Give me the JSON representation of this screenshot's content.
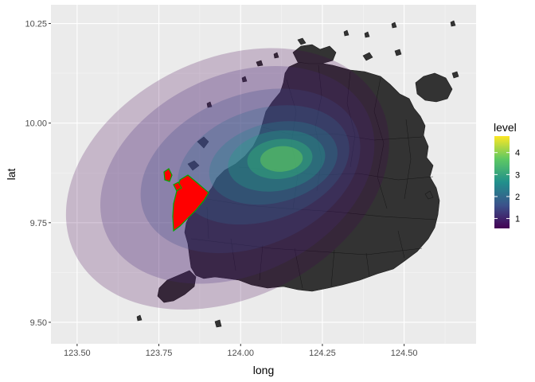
{
  "chart_data": {
    "type": "map-density",
    "xlabel": "long",
    "ylabel": "lat",
    "xlim": [
      123.42,
      124.72
    ],
    "ylim": [
      9.446,
      10.297
    ],
    "x_ticks": [
      {
        "value": 123.5,
        "label": "123.50"
      },
      {
        "value": 123.75,
        "label": "123.75"
      },
      {
        "value": 124.0,
        "label": "124.00"
      },
      {
        "value": 124.25,
        "label": "124.25"
      },
      {
        "value": 124.5,
        "label": "124.50"
      }
    ],
    "y_ticks": [
      {
        "value": 9.5,
        "label": "9.50"
      },
      {
        "value": 9.75,
        "label": "9.75"
      },
      {
        "value": 10.0,
        "label": "10.00"
      },
      {
        "value": 10.25,
        "label": "10.25"
      }
    ],
    "grid": true,
    "legend": {
      "title": "level",
      "position": "right",
      "ticks": [
        {
          "value": 1,
          "label": "1"
        },
        {
          "value": 2,
          "label": "2"
        },
        {
          "value": 3,
          "label": "3"
        },
        {
          "value": 4,
          "label": "4"
        }
      ],
      "range": [
        0.55,
        4.75
      ],
      "colors": [
        "#440154",
        "#3b528b",
        "#21908c",
        "#5dc863",
        "#fde725"
      ]
    },
    "density": {
      "center": [
        124.12,
        9.91
      ],
      "contours": [
        {
          "level": 0.5,
          "color": "#440154",
          "opacity": 0.22,
          "cx": 123.96,
          "cy": 9.86,
          "rx": 0.52,
          "ry": 0.3,
          "rot": -26
        },
        {
          "level": 1.0,
          "color": "#482878",
          "opacity": 0.24,
          "cx": 123.99,
          "cy": 9.87,
          "rx": 0.44,
          "ry": 0.25,
          "rot": -25
        },
        {
          "level": 1.5,
          "color": "#3e4989",
          "opacity": 0.26,
          "cx": 124.03,
          "cy": 9.88,
          "rx": 0.35,
          "ry": 0.19,
          "rot": -22
        },
        {
          "level": 2.0,
          "color": "#31688e",
          "opacity": 0.28,
          "cx": 124.07,
          "cy": 9.895,
          "rx": 0.27,
          "ry": 0.14,
          "rot": -18
        },
        {
          "level": 2.5,
          "color": "#26828e",
          "opacity": 0.3,
          "cx": 124.1,
          "cy": 9.9,
          "rx": 0.2,
          "ry": 0.1,
          "rot": -14
        },
        {
          "level": 3.0,
          "color": "#1f9e89",
          "opacity": 0.34,
          "cx": 124.11,
          "cy": 9.905,
          "rx": 0.15,
          "ry": 0.075,
          "rot": -10
        },
        {
          "level": 3.5,
          "color": "#35b779",
          "opacity": 0.4,
          "cx": 124.12,
          "cy": 9.91,
          "rx": 0.1,
          "ry": 0.05,
          "rot": -6
        },
        {
          "level": 4.0,
          "color": "#6ece58",
          "opacity": 0.46,
          "cx": 124.125,
          "cy": 9.91,
          "rx": 0.065,
          "ry": 0.032,
          "rot": -4
        }
      ]
    },
    "island_fill": "#333333",
    "highlight": {
      "fill": "#ff0000",
      "stroke": "#00aa00"
    }
  }
}
